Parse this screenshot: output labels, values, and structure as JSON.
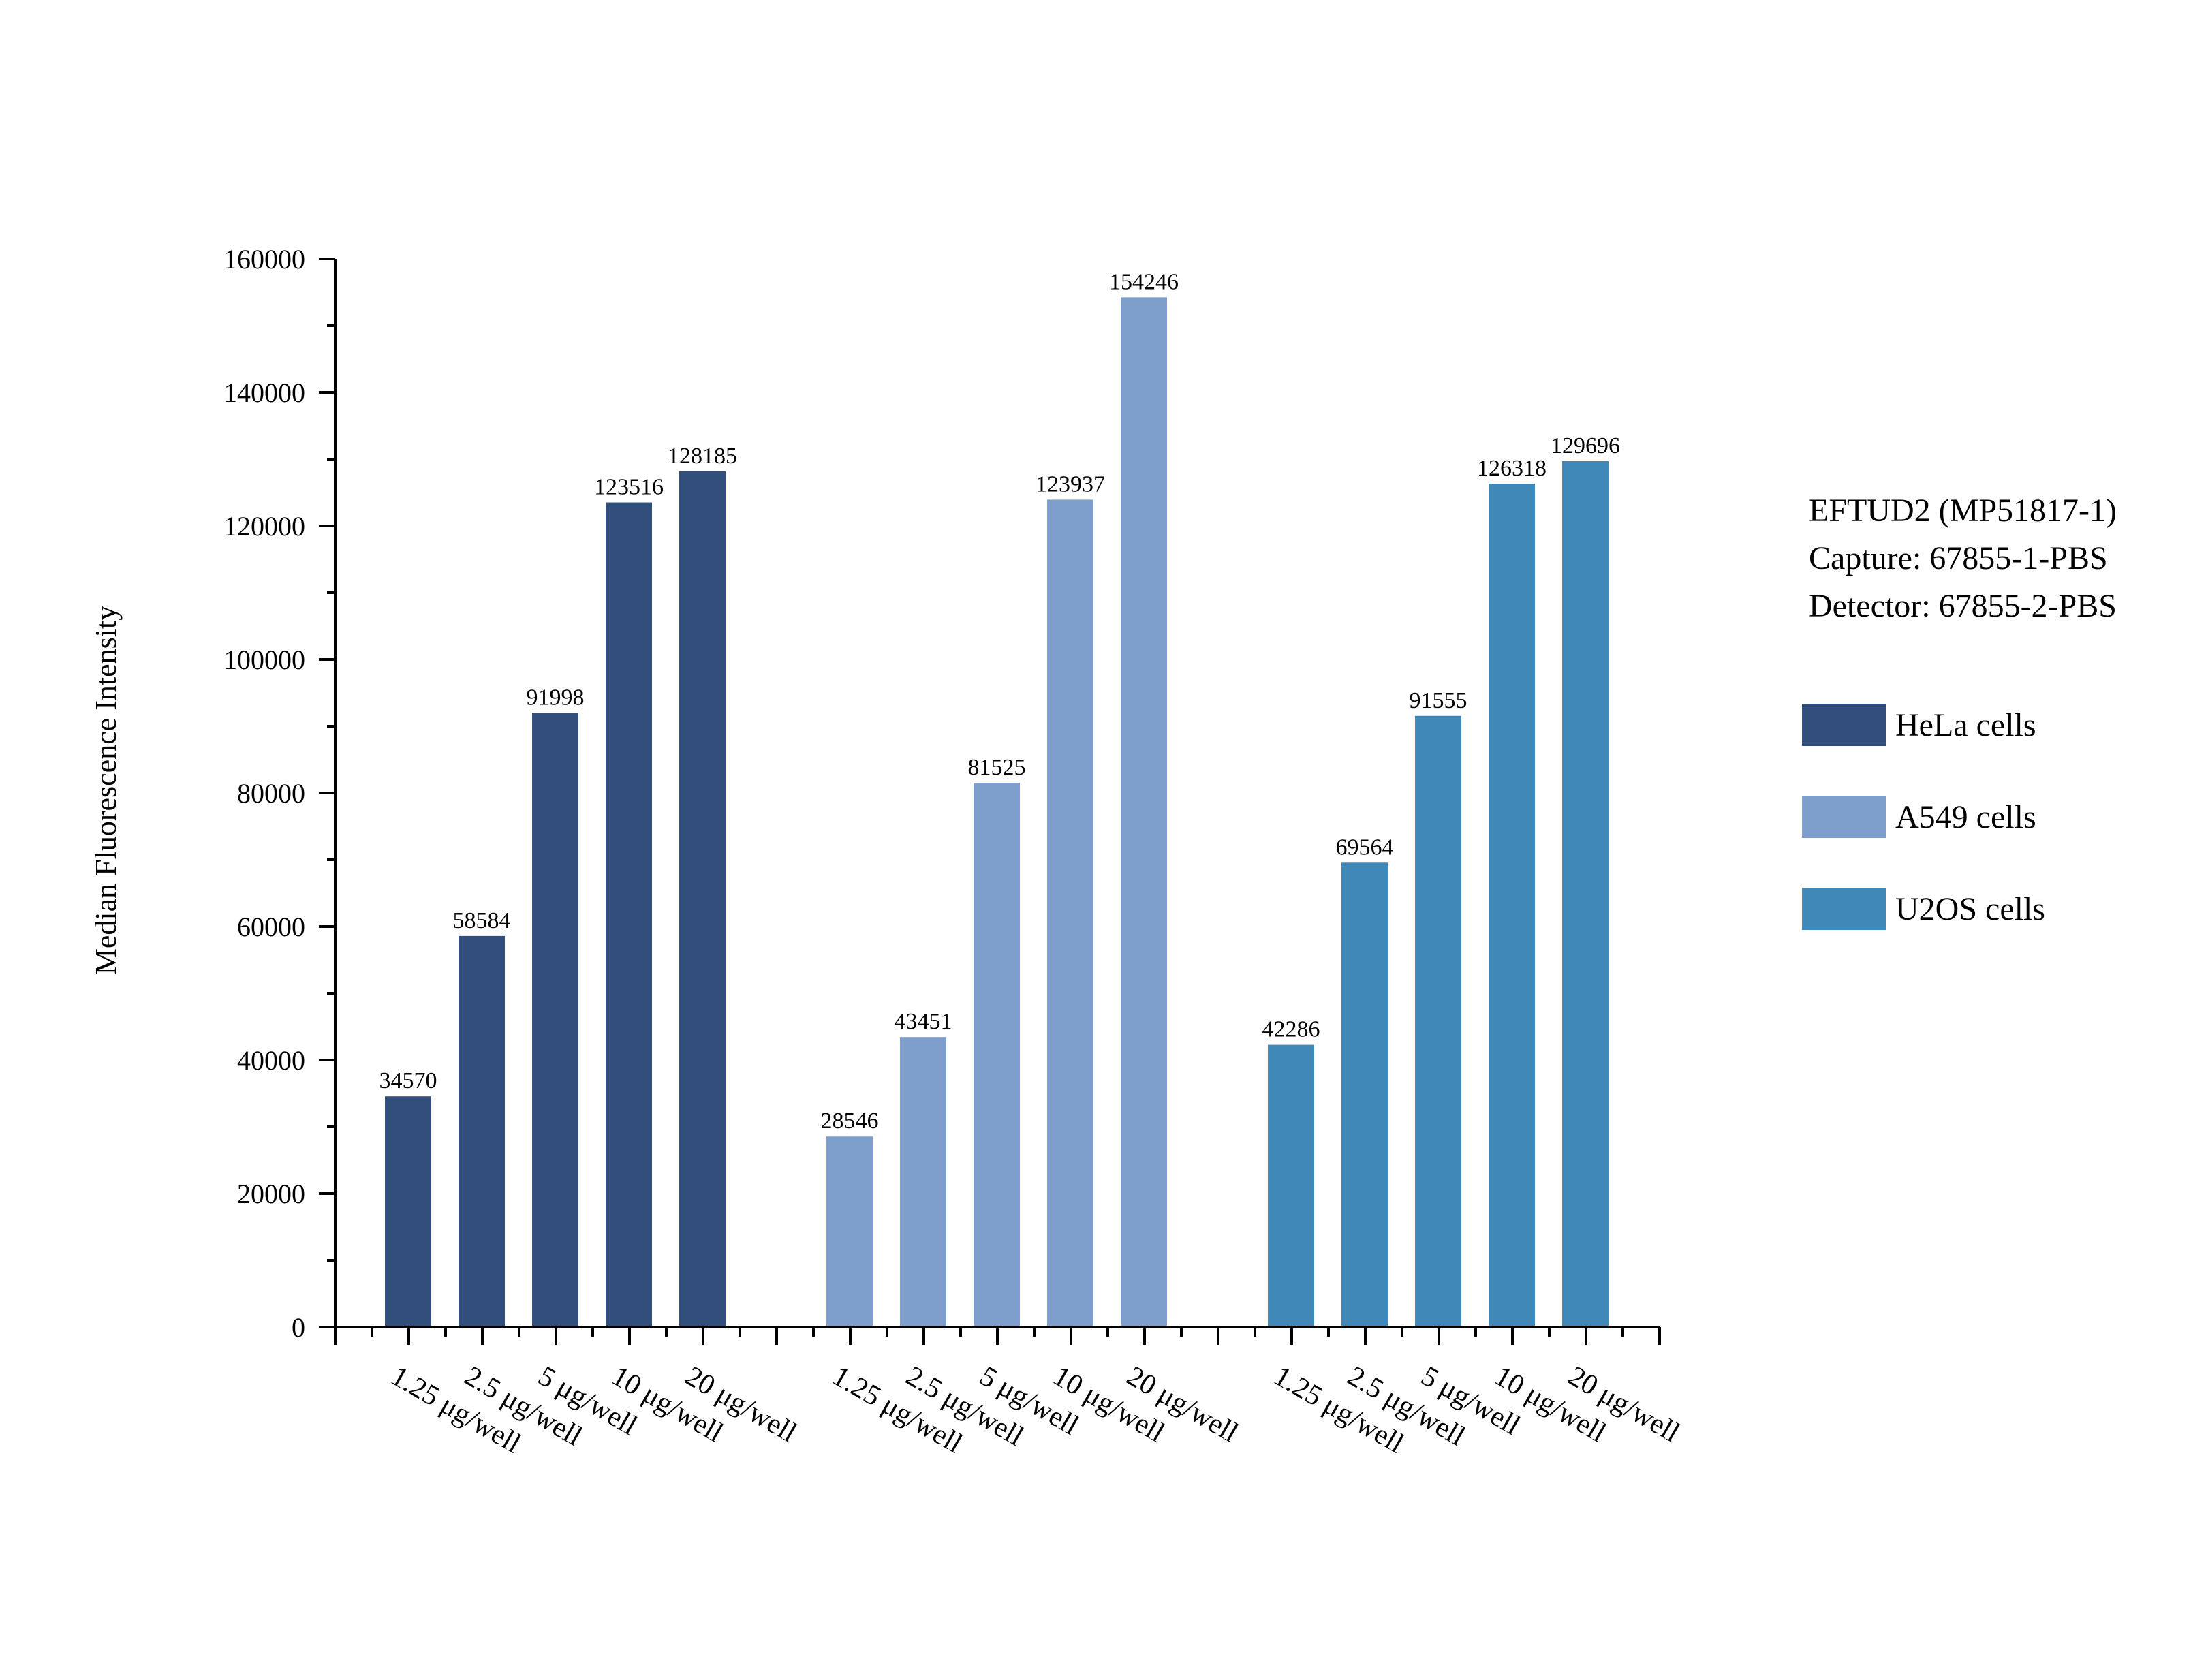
{
  "chart_data": {
    "type": "bar",
    "ylabel": "Median Fluorescence Intensity",
    "ylim": [
      0,
      160000
    ],
    "yticks": [
      0,
      20000,
      40000,
      60000,
      80000,
      100000,
      120000,
      140000,
      160000
    ],
    "grid": false,
    "legend_position": "right",
    "categories": [
      "1.25 μg/well",
      "2.5 μg/well",
      "5 μg/well",
      "10 μg/well",
      "20 μg/well"
    ],
    "series": [
      {
        "name": "HeLa cells",
        "color": "#314f7a",
        "values": [
          34570,
          58584,
          91998,
          123516,
          128185
        ]
      },
      {
        "name": "A549 cells",
        "color": "#7e9fcc",
        "values": [
          28546,
          43451,
          81525,
          123937,
          154246
        ]
      },
      {
        "name": "U2OS cells",
        "color": "#3f88b8",
        "values": [
          42286,
          69564,
          91555,
          126318,
          129696
        ]
      }
    ],
    "info_lines": [
      "EFTUD2 (MP51817-1)",
      "Capture: 67855-1-PBS",
      "Detector: 67855-2-PBS"
    ]
  }
}
